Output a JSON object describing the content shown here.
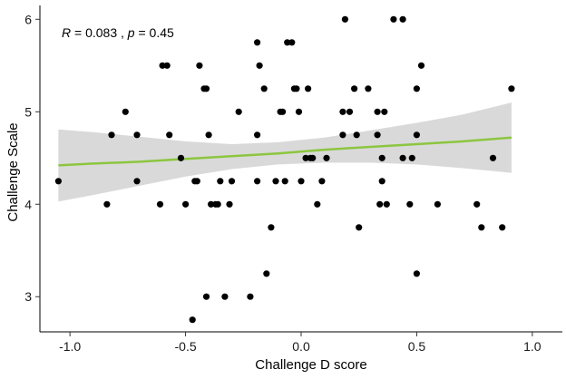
{
  "chart_data": {
    "type": "scatter",
    "title": "",
    "xlabel": "Challenge D score",
    "ylabel": "Challenge Scale",
    "xlim": [
      -1.13,
      1.13
    ],
    "ylim": [
      2.62,
      6.15
    ],
    "x_ticks": [
      -1.0,
      -0.5,
      0.0,
      0.5,
      1.0
    ],
    "x_tick_labels": [
      "-1.0",
      "-0.5",
      "0.0",
      "0.5",
      "1.0"
    ],
    "y_ticks": [
      3,
      4,
      5,
      6
    ],
    "y_tick_labels": [
      "3",
      "4",
      "5",
      "6"
    ],
    "grid": false,
    "annotation": {
      "r_symbol": "R",
      "r_text": " = 0.083 , ",
      "p_symbol": "p",
      "p_text": " = 0.45"
    },
    "regression": {
      "color": "#8cc63f",
      "band_color": "#d9d9d9",
      "x": [
        -1.05,
        -0.9,
        -0.7,
        -0.5,
        -0.3,
        -0.1,
        0.1,
        0.3,
        0.5,
        0.7,
        0.91
      ],
      "fit": [
        4.42,
        4.44,
        4.46,
        4.49,
        4.52,
        4.55,
        4.59,
        4.62,
        4.65,
        4.68,
        4.72
      ],
      "lower": [
        4.03,
        4.1,
        4.2,
        4.3,
        4.38,
        4.43,
        4.45,
        4.45,
        4.43,
        4.39,
        4.34
      ],
      "upper": [
        4.81,
        4.78,
        4.73,
        4.68,
        4.65,
        4.67,
        4.72,
        4.8,
        4.88,
        4.97,
        5.1
      ]
    },
    "point_color": "#000000",
    "points": [
      {
        "x": -1.05,
        "y": 4.25
      },
      {
        "x": -0.84,
        "y": 4.0
      },
      {
        "x": -0.82,
        "y": 4.75
      },
      {
        "x": -0.76,
        "y": 5.0
      },
      {
        "x": -0.71,
        "y": 4.75
      },
      {
        "x": -0.71,
        "y": 4.25
      },
      {
        "x": -0.61,
        "y": 4.0
      },
      {
        "x": -0.6,
        "y": 5.5
      },
      {
        "x": -0.58,
        "y": 5.5
      },
      {
        "x": -0.57,
        "y": 4.75
      },
      {
        "x": -0.52,
        "y": 4.5
      },
      {
        "x": -0.5,
        "y": 4.0
      },
      {
        "x": -0.46,
        "y": 4.25
      },
      {
        "x": -0.45,
        "y": 4.25
      },
      {
        "x": -0.44,
        "y": 5.5
      },
      {
        "x": -0.47,
        "y": 2.75
      },
      {
        "x": -0.42,
        "y": 5.25
      },
      {
        "x": -0.41,
        "y": 5.25
      },
      {
        "x": -0.41,
        "y": 3.0
      },
      {
        "x": -0.4,
        "y": 4.75
      },
      {
        "x": -0.39,
        "y": 4.0
      },
      {
        "x": -0.37,
        "y": 4.0
      },
      {
        "x": -0.36,
        "y": 4.0
      },
      {
        "x": -0.35,
        "y": 4.25
      },
      {
        "x": -0.33,
        "y": 3.0
      },
      {
        "x": -0.31,
        "y": 4.0
      },
      {
        "x": -0.3,
        "y": 4.25
      },
      {
        "x": -0.27,
        "y": 5.0
      },
      {
        "x": -0.22,
        "y": 3.0
      },
      {
        "x": -0.19,
        "y": 5.75
      },
      {
        "x": -0.19,
        "y": 4.75
      },
      {
        "x": -0.19,
        "y": 4.25
      },
      {
        "x": -0.18,
        "y": 5.5
      },
      {
        "x": -0.16,
        "y": 5.25
      },
      {
        "x": -0.15,
        "y": 3.25
      },
      {
        "x": -0.13,
        "y": 3.75
      },
      {
        "x": -0.11,
        "y": 4.25
      },
      {
        "x": -0.09,
        "y": 5.0
      },
      {
        "x": -0.08,
        "y": 5.0
      },
      {
        "x": -0.07,
        "y": 4.25
      },
      {
        "x": -0.06,
        "y": 5.75
      },
      {
        "x": -0.04,
        "y": 5.75
      },
      {
        "x": -0.03,
        "y": 5.25
      },
      {
        "x": -0.02,
        "y": 5.25
      },
      {
        "x": -0.01,
        "y": 5.0
      },
      {
        "x": 0.0,
        "y": 4.25
      },
      {
        "x": 0.02,
        "y": 4.5
      },
      {
        "x": 0.03,
        "y": 5.25
      },
      {
        "x": 0.04,
        "y": 4.5
      },
      {
        "x": 0.05,
        "y": 4.5
      },
      {
        "x": 0.07,
        "y": 4.0
      },
      {
        "x": 0.09,
        "y": 4.25
      },
      {
        "x": 0.11,
        "y": 4.5
      },
      {
        "x": 0.18,
        "y": 4.75
      },
      {
        "x": 0.18,
        "y": 5.0
      },
      {
        "x": 0.19,
        "y": 6.0
      },
      {
        "x": 0.21,
        "y": 5.0
      },
      {
        "x": 0.23,
        "y": 5.25
      },
      {
        "x": 0.24,
        "y": 4.75
      },
      {
        "x": 0.25,
        "y": 3.75
      },
      {
        "x": 0.29,
        "y": 5.25
      },
      {
        "x": 0.33,
        "y": 5.0
      },
      {
        "x": 0.33,
        "y": 4.75
      },
      {
        "x": 0.34,
        "y": 4.0
      },
      {
        "x": 0.35,
        "y": 4.25
      },
      {
        "x": 0.35,
        "y": 4.5
      },
      {
        "x": 0.36,
        "y": 5.0
      },
      {
        "x": 0.37,
        "y": 4.0
      },
      {
        "x": 0.4,
        "y": 6.0
      },
      {
        "x": 0.44,
        "y": 6.0
      },
      {
        "x": 0.44,
        "y": 4.5
      },
      {
        "x": 0.47,
        "y": 4.0
      },
      {
        "x": 0.48,
        "y": 4.5
      },
      {
        "x": 0.5,
        "y": 5.25
      },
      {
        "x": 0.5,
        "y": 4.75
      },
      {
        "x": 0.5,
        "y": 3.25
      },
      {
        "x": 0.52,
        "y": 5.5
      },
      {
        "x": 0.59,
        "y": 4.0
      },
      {
        "x": 0.76,
        "y": 4.0
      },
      {
        "x": 0.78,
        "y": 3.75
      },
      {
        "x": 0.83,
        "y": 4.5
      },
      {
        "x": 0.87,
        "y": 3.75
      },
      {
        "x": 0.91,
        "y": 5.25
      }
    ]
  }
}
